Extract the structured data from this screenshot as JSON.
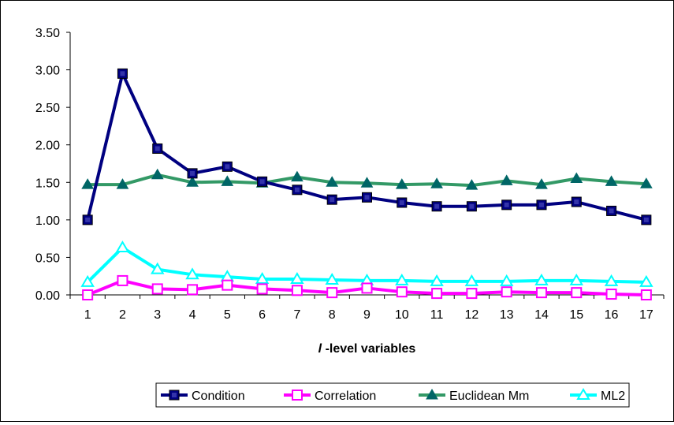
{
  "chart_data": {
    "type": "line",
    "title": "",
    "xlabel_prefix": "l",
    "xlabel_suffix": " -level variables",
    "ylabel": "",
    "x": [
      1,
      2,
      3,
      4,
      5,
      6,
      7,
      8,
      9,
      10,
      11,
      12,
      13,
      14,
      15,
      16,
      17
    ],
    "x_tick_labels": [
      "1",
      "2",
      "3",
      "4",
      "5",
      "6",
      "7",
      "8",
      "9",
      "10",
      "11",
      "12",
      "13",
      "14",
      "15",
      "16",
      "17"
    ],
    "ylim": [
      0,
      3.5
    ],
    "y_ticks": [
      0,
      0.5,
      1.0,
      1.5,
      2.0,
      2.5,
      3.0,
      3.5
    ],
    "y_tick_labels": [
      "0.00",
      "0.50",
      "1.00",
      "1.50",
      "2.00",
      "2.50",
      "3.00",
      "3.50"
    ],
    "grid": false,
    "legend_position": "bottom",
    "series": [
      {
        "name": "Condition",
        "color": "#000080",
        "marker": "square-filled",
        "values": [
          1.0,
          2.95,
          1.95,
          1.62,
          1.71,
          1.51,
          1.4,
          1.27,
          1.3,
          1.23,
          1.18,
          1.18,
          1.2,
          1.2,
          1.24,
          1.12,
          1.0
        ]
      },
      {
        "name": "Correlation",
        "color": "#FF00FF",
        "marker": "square-open",
        "values": [
          0.0,
          0.19,
          0.08,
          0.07,
          0.13,
          0.08,
          0.06,
          0.03,
          0.09,
          0.04,
          0.02,
          0.02,
          0.04,
          0.03,
          0.03,
          0.01,
          0.0
        ]
      },
      {
        "name": "Euclidean Mm",
        "color": "#339966",
        "marker_color": "#006666",
        "marker": "triangle-filled",
        "values": [
          1.47,
          1.47,
          1.6,
          1.5,
          1.51,
          1.49,
          1.57,
          1.5,
          1.49,
          1.47,
          1.48,
          1.46,
          1.52,
          1.47,
          1.55,
          1.51,
          1.48
        ]
      },
      {
        "name": "ML2",
        "color": "#00FFFF",
        "marker": "triangle-open",
        "values": [
          0.17,
          0.63,
          0.34,
          0.27,
          0.24,
          0.21,
          0.21,
          0.2,
          0.19,
          0.19,
          0.18,
          0.18,
          0.18,
          0.19,
          0.19,
          0.18,
          0.17
        ]
      }
    ]
  }
}
